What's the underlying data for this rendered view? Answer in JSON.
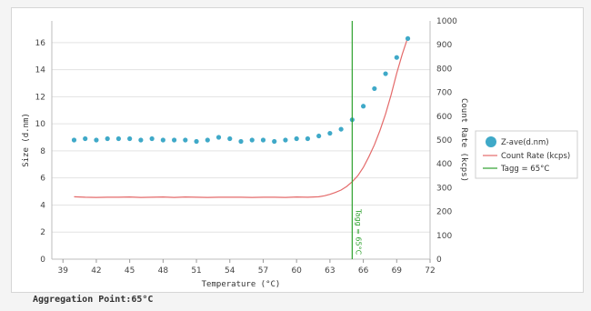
{
  "chart_data": {
    "type": "scatter",
    "xlabel": "Temperature (°C)",
    "ylabel_left": "Size (d.nm)",
    "ylabel_right": "Count Rate (kcps)",
    "x_ticks": [
      "39",
      "42",
      "45",
      "48",
      "51",
      "54",
      "57",
      "60",
      "63",
      "66",
      "69",
      "72"
    ],
    "y_left_ticks": [
      "0",
      "2",
      "4",
      "6",
      "8",
      "10",
      "12",
      "14",
      "16"
    ],
    "y_right_ticks": [
      "0",
      "100",
      "200",
      "300",
      "400",
      "500",
      "600",
      "700",
      "800",
      "900",
      "1000"
    ],
    "xlim": [
      38,
      72
    ],
    "ylim_left": [
      0,
      17.6
    ],
    "ylim_right": [
      0,
      1000
    ],
    "series": [
      {
        "name": "Z-ave(d.nm)",
        "kind": "scatter",
        "axis": "left",
        "color": "#3fa9c8",
        "x": [
          40,
          41,
          42,
          43,
          44,
          45,
          46,
          47,
          48,
          49,
          50,
          51,
          52,
          53,
          54,
          55,
          56,
          57,
          58,
          59,
          60,
          61,
          62,
          63,
          64,
          65,
          66,
          67,
          68,
          69,
          70
        ],
        "y": [
          8.8,
          8.9,
          8.8,
          8.9,
          8.9,
          8.9,
          8.8,
          8.9,
          8.8,
          8.8,
          8.8,
          8.7,
          8.8,
          9.0,
          8.9,
          8.7,
          8.8,
          8.8,
          8.7,
          8.8,
          8.9,
          8.9,
          9.1,
          9.3,
          9.6,
          10.3,
          11.3,
          12.6,
          13.7,
          14.9,
          16.3
        ]
      },
      {
        "name": "Count Rate (kcps)",
        "kind": "line",
        "axis": "right",
        "color": "#e46a6a",
        "x": [
          40,
          41,
          42,
          43,
          44,
          45,
          46,
          47,
          48,
          49,
          50,
          51,
          52,
          53,
          54,
          55,
          56,
          57,
          58,
          59,
          60,
          61,
          62,
          62.5,
          63,
          63.5,
          64,
          64.5,
          65,
          65.5,
          66,
          66.5,
          67,
          67.5,
          68,
          68.5,
          69,
          69.5,
          70
        ],
        "y": [
          262,
          260,
          259,
          260,
          260,
          261,
          259,
          260,
          261,
          259,
          261,
          260,
          259,
          260,
          260,
          260,
          259,
          260,
          260,
          259,
          261,
          260,
          262,
          266,
          272,
          280,
          290,
          305,
          325,
          350,
          385,
          430,
          480,
          540,
          610,
          690,
          780,
          860,
          930
        ]
      }
    ],
    "annotation": {
      "name": "Tagg = 65°C",
      "x": 65,
      "color": "#2ea12e",
      "label": "Tagg = 65°C"
    },
    "legend": {
      "placement": "right",
      "entries": [
        "Z-ave(d.nm)",
        "Count Rate (kcps)",
        "Tagg = 65°C"
      ]
    },
    "grid": "horizontal"
  },
  "footer_label": "Aggregation Point:65°C"
}
